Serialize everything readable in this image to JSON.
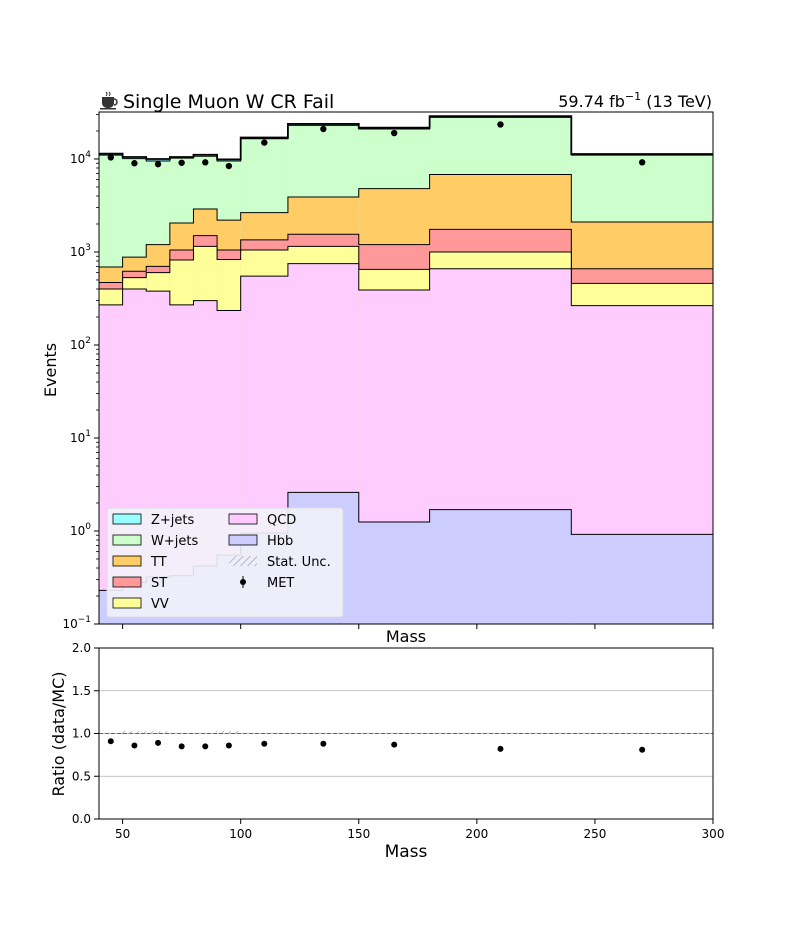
{
  "chart_data": [
    {
      "type": "area",
      "title": "Single Muon W CR Fail",
      "title_icon": "coffee-icon",
      "lumi_text": "59.74 fb",
      "lumi_exp": "−1",
      "energy_text": "(13 TeV)",
      "xlabel": "Mass",
      "ylabel": "Events",
      "yscale": "log",
      "xlim": [
        40,
        300
      ],
      "ylim": [
        0.1,
        32000
      ],
      "y_ticks": [
        {
          "value": 0.1,
          "base": "10",
          "exp": "−1"
        },
        {
          "value": 1,
          "base": "10",
          "exp": "0"
        },
        {
          "value": 10,
          "base": "10",
          "exp": "1"
        },
        {
          "value": 100,
          "base": "10",
          "exp": "2"
        },
        {
          "value": 1000,
          "base": "10",
          "exp": "3"
        },
        {
          "value": 10000,
          "base": "10",
          "exp": "4"
        }
      ],
      "x_ticks": [
        50,
        100,
        150,
        200,
        250,
        300
      ],
      "bin_edges": [
        40,
        50,
        60,
        70,
        80,
        90,
        100,
        120,
        150,
        180,
        240,
        300
      ],
      "stack_order": [
        "Hbb",
        "QCD",
        "VV",
        "ST",
        "TT",
        "W+jets",
        "Z+jets"
      ],
      "colors": {
        "Z+jets": "#99ffff",
        "W+jets": "#ccffcc",
        "TT": "#ffcc66",
        "ST": "#ff9999",
        "VV": "#ffff99",
        "QCD": "#ffccff",
        "Hbb": "#ccccff"
      },
      "cumulative": {
        "Hbb": [
          0.23,
          0.28,
          0.32,
          0.33,
          0.42,
          0.55,
          0.95,
          2.6,
          1.25,
          1.7,
          0.92
        ],
        "QCD": [
          270,
          400,
          380,
          270,
          300,
          235,
          550,
          750,
          390,
          660,
          265
        ],
        "VV": [
          400,
          530,
          600,
          820,
          1150,
          830,
          1050,
          1150,
          650,
          1000,
          460
        ],
        "ST": [
          470,
          620,
          700,
          1050,
          1500,
          1050,
          1350,
          1550,
          1200,
          1750,
          660
        ],
        "TT": [
          690,
          880,
          1200,
          2050,
          2900,
          2200,
          2650,
          3900,
          4800,
          6800,
          2100
        ],
        "W+jets": [
          11000,
          10100,
          9500,
          10200,
          10700,
          9500,
          16500,
          23000,
          21000,
          28000,
          11000
        ],
        "Z+jets": [
          11400,
          10500,
          10000,
          10500,
          11100,
          9900,
          17000,
          23800,
          21700,
          28900,
          11300
        ]
      },
      "data_points": {
        "name": "MET",
        "x": [
          45,
          55,
          65,
          75,
          85,
          95,
          110,
          135,
          165,
          210,
          270
        ],
        "y": [
          10400,
          9000,
          8800,
          9100,
          9200,
          8400,
          15000,
          21000,
          19000,
          23500,
          9200
        ]
      },
      "legend": {
        "placement": "lower-left",
        "entries": [
          {
            "label": "Z+jets",
            "kind": "patch",
            "color": "#99ffff"
          },
          {
            "label": "W+jets",
            "kind": "patch",
            "color": "#ccffcc"
          },
          {
            "label": "TT",
            "kind": "patch",
            "color": "#ffcc66"
          },
          {
            "label": "ST",
            "kind": "patch",
            "color": "#ff9999"
          },
          {
            "label": "VV",
            "kind": "patch",
            "color": "#ffff99"
          },
          {
            "label": "QCD",
            "kind": "patch",
            "color": "#ffccff"
          },
          {
            "label": "Hbb",
            "kind": "patch",
            "color": "#ccccff"
          },
          {
            "label": "Stat. Unc.",
            "kind": "hatch",
            "color": "#888888"
          },
          {
            "label": "MET",
            "kind": "point",
            "color": "#000000"
          }
        ]
      }
    },
    {
      "type": "scatter",
      "xlabel": "Mass",
      "ylabel": "Ratio (data/MC)",
      "xlim": [
        40,
        300
      ],
      "ylim": [
        0.0,
        2.0
      ],
      "x_ticks": [
        50,
        100,
        150,
        200,
        250,
        300
      ],
      "y_ticks": [
        "0.0",
        "0.5",
        "1.0",
        "1.5",
        "2.0"
      ],
      "grid": "horizontal",
      "reference_line": 1.0,
      "x": [
        45,
        55,
        65,
        75,
        85,
        95,
        110,
        135,
        165,
        210,
        270
      ],
      "y": [
        0.91,
        0.86,
        0.89,
        0.85,
        0.85,
        0.86,
        0.88,
        0.88,
        0.87,
        0.82,
        0.81
      ]
    }
  ]
}
